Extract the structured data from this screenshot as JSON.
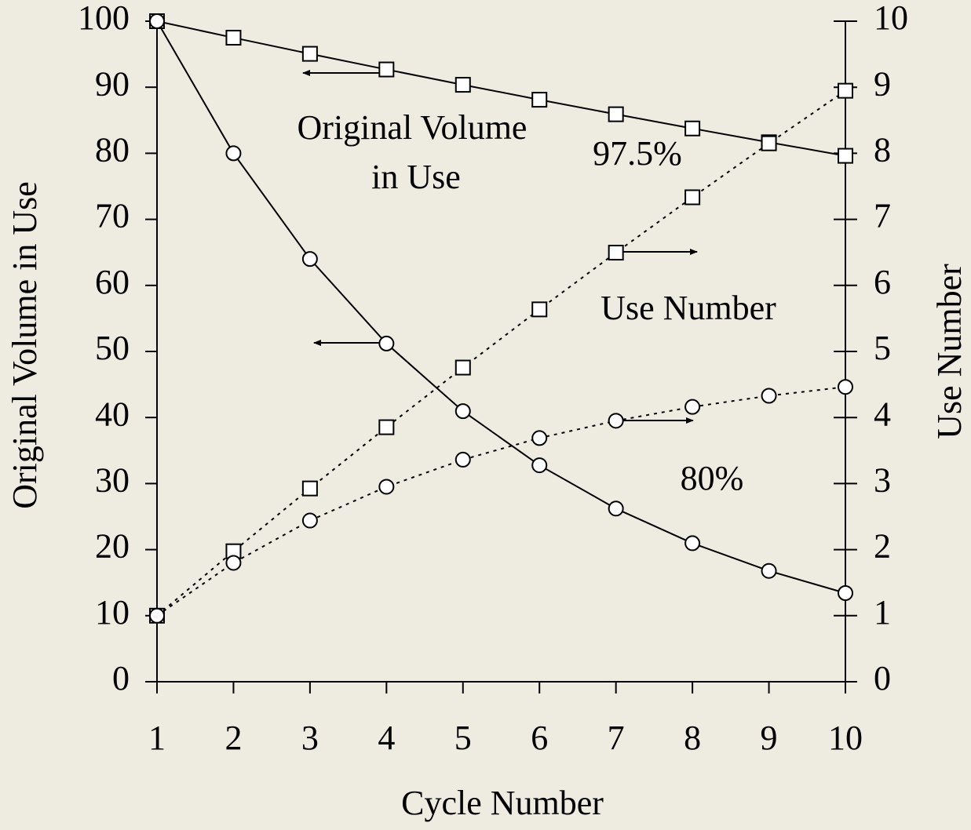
{
  "chart_data": {
    "type": "line",
    "x_label": "Cycle Number",
    "y_label": "Original Volume in Use",
    "y2_label": "Use Number",
    "annotations": [
      [
        "Original Volume",
        "in Use"
      ],
      "97.5%",
      "Use Number",
      "80%"
    ],
    "x": [
      1,
      2,
      3,
      4,
      5,
      6,
      7,
      8,
      9,
      10
    ],
    "xlim": [
      1,
      10
    ],
    "xticks": [
      1,
      2,
      3,
      4,
      5,
      6,
      7,
      8,
      9,
      10
    ],
    "ylim": [
      0,
      100
    ],
    "yticks": [
      0,
      10,
      20,
      30,
      40,
      50,
      60,
      70,
      80,
      90,
      100
    ],
    "y2lim": [
      0,
      10
    ],
    "y2ticks": [
      0,
      1,
      2,
      3,
      4,
      5,
      6,
      7,
      8,
      9,
      10
    ],
    "series": [
      {
        "color": "#000000",
        "marker": "square",
        "line_style": "solid",
        "values": [
          100,
          97.5,
          95.06,
          92.69,
          90.37,
          88.11,
          85.91,
          83.76,
          81.67,
          79.62
        ]
      },
      {
        "color": "#000000",
        "marker": "circle",
        "line_style": "solid",
        "values": [
          100,
          80,
          64,
          51.2,
          40.96,
          32.77,
          26.21,
          20.97,
          16.78,
          13.42
        ]
      },
      {
        "color": "#000000",
        "marker": "square",
        "line_style": "dotted",
        "axis": "y2",
        "values": [
          1,
          1.975,
          2.926,
          3.853,
          4.756,
          5.637,
          6.496,
          7.334,
          8.151,
          8.947
        ]
      },
      {
        "color": "#000000",
        "marker": "circle",
        "line_style": "dotted",
        "axis": "y2",
        "values": [
          1,
          1.8,
          2.44,
          2.952,
          3.362,
          3.689,
          3.951,
          4.161,
          4.329,
          4.463
        ]
      }
    ]
  }
}
